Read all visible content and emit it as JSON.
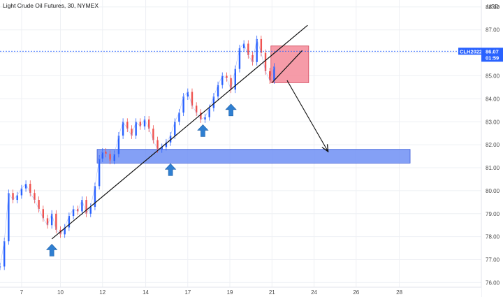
{
  "chart_data": {
    "type": "line",
    "title": "Light Crude Oil Futures, 30, NYMEX",
    "symbol": "CLH2022",
    "current_price": "86.07",
    "countdown": "01:59",
    "currency": "USD",
    "y_min": 75.8,
    "y_max": 88.3,
    "y_ticks": [
      "76.00",
      "77.00",
      "78.00",
      "79.00",
      "80.00",
      "81.00",
      "82.00",
      "83.00",
      "84.00",
      "85.00",
      "86.00",
      "87.00",
      "88.00"
    ],
    "x_min": 6.0,
    "x_max": 28.3,
    "x_ticks": [
      {
        "pos": 7,
        "label": "7"
      },
      {
        "pos": 8.8,
        "label": "10"
      },
      {
        "pos": 10.75,
        "label": "12"
      },
      {
        "pos": 12.75,
        "label": "14"
      },
      {
        "pos": 14.7,
        "label": "17"
      },
      {
        "pos": 16.65,
        "label": "19"
      },
      {
        "pos": 18.6,
        "label": "21"
      },
      {
        "pos": 20.55,
        "label": "24"
      },
      {
        "pos": 22.5,
        "label": "26"
      },
      {
        "pos": 24.5,
        "label": "28"
      }
    ],
    "grid": true,
    "up_color": "#2962ff",
    "series": [
      {
        "x": [
          6.0,
          6.2,
          6.4,
          6.6,
          6.8,
          7.0,
          7.2,
          7.4,
          7.6,
          7.8,
          8.0,
          8.2,
          8.4,
          8.6,
          8.8,
          9.0,
          9.2,
          9.4,
          9.6,
          9.8,
          10.0,
          10.2,
          10.4,
          10.6,
          10.75,
          10.9,
          11.1,
          11.3,
          11.5,
          11.7,
          11.9,
          12.1,
          12.3,
          12.5,
          12.7,
          12.9,
          13.1,
          13.3,
          13.5,
          13.7,
          13.9,
          14.1,
          14.3,
          14.5,
          14.7,
          14.9,
          15.1,
          15.3,
          15.5,
          15.7,
          15.9,
          16.1,
          16.3,
          16.5,
          16.7,
          16.9,
          17.1,
          17.3,
          17.5,
          17.7,
          17.9,
          18.1,
          18.3,
          18.5,
          18.7
        ],
        "values": [
          76.7,
          77.8,
          79.9,
          79.6,
          79.8,
          80.1,
          80.3,
          79.9,
          79.6,
          79.2,
          78.8,
          78.5,
          79.0,
          78.3,
          78.1,
          78.4,
          78.9,
          79.2,
          79.1,
          79.6,
          79.0,
          79.3,
          80.2,
          81.4,
          81.7,
          81.6,
          81.3,
          81.6,
          82.4,
          83.0,
          82.7,
          82.4,
          83.0,
          82.8,
          83.1,
          82.7,
          82.2,
          81.8,
          81.9,
          82.1,
          82.4,
          83.0,
          83.4,
          84.1,
          84.3,
          83.7,
          83.4,
          83.1,
          83.2,
          83.6,
          84.1,
          84.6,
          85.0,
          84.9,
          84.4,
          85.3,
          86.2,
          86.4,
          85.9,
          85.6,
          86.6,
          86.0,
          85.2,
          84.8,
          85.4
        ]
      }
    ]
  },
  "annotations": {
    "support_zone": {
      "x_start": 10.5,
      "x_end": 25.0,
      "y_low": 81.2,
      "y_high": 81.8,
      "color": "#6f8ff5"
    },
    "consolidation_box": {
      "x_start": 18.55,
      "x_end": 20.3,
      "y_low": 84.7,
      "y_high": 86.3,
      "color": "#f48a99"
    },
    "trendline_main": {
      "x1": 8.4,
      "y1": 77.9,
      "x2": 20.25,
      "y2": 87.2
    },
    "trendline_inner": {
      "x1": 18.6,
      "y1": 84.7,
      "x2": 20.0,
      "y2": 86.1
    },
    "projection_arrow": {
      "x1": 19.3,
      "y1": 84.8,
      "x2": 21.2,
      "y2": 81.7
    },
    "up_arrows": [
      {
        "x": 8.4,
        "y": 77.4
      },
      {
        "x": 13.9,
        "y": 80.9
      },
      {
        "x": 15.4,
        "y": 82.6
      },
      {
        "x": 16.7,
        "y": 83.5
      }
    ]
  }
}
